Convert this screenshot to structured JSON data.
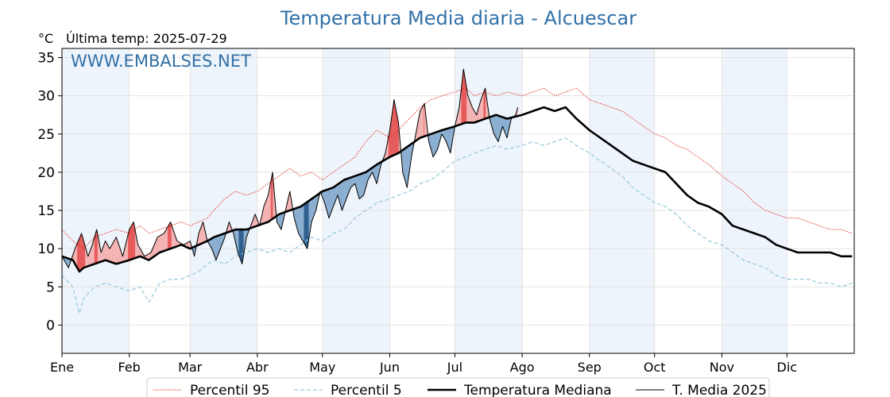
{
  "chart_data": {
    "type": "line",
    "title": "Temperatura Media diaria - Alcuescar",
    "unit_label": "°C",
    "last_temp_label": "Última temp: 2025-07-29",
    "watermark": "WWW.EMBALSES.NET",
    "ylim": [
      -3.7,
      36.2
    ],
    "y_ticks": [
      0,
      5,
      10,
      15,
      20,
      25,
      30,
      35
    ],
    "xlim_day": [
      0,
      365
    ],
    "months": [
      "Ene",
      "Feb",
      "Mar",
      "Abr",
      "May",
      "Jun",
      "Jul",
      "Ago",
      "Sep",
      "Oct",
      "Nov",
      "Dic"
    ],
    "month_start_day": [
      0,
      31,
      59,
      90,
      120,
      151,
      181,
      212,
      243,
      273,
      304,
      334
    ],
    "grid": true,
    "legend_position": "bottom-center",
    "colors": {
      "p95": "#e0241b",
      "p5": "#9ccbdc",
      "median": "#000000",
      "t2025": "#000000",
      "above_fill": "#f4b4b4",
      "above_fill_strong": "#e65a5a",
      "below_fill": "#8aaed0",
      "below_fill_strong": "#2f5f8f",
      "band_shade": "#eef4fb",
      "title": "#3070a8"
    },
    "series": [
      {
        "name": "Percentil 95",
        "style": "dotted-thin-red",
        "x": [
          0,
          5,
          10,
          15,
          20,
          25,
          31,
          36,
          40,
          45,
          50,
          55,
          59,
          63,
          67,
          70,
          75,
          80,
          85,
          90,
          95,
          100,
          105,
          110,
          115,
          120,
          125,
          130,
          135,
          140,
          145,
          151,
          155,
          160,
          165,
          170,
          175,
          181,
          186,
          190,
          195,
          200,
          205,
          212,
          217,
          222,
          227,
          232,
          237,
          243,
          248,
          253,
          258,
          263,
          268,
          273,
          278,
          283,
          288,
          293,
          298,
          304,
          309,
          314,
          319,
          324,
          329,
          334,
          339,
          344,
          349,
          354,
          359,
          364
        ],
        "values": [
          12.5,
          11.0,
          10.0,
          11.5,
          12.0,
          12.5,
          12.0,
          13.0,
          12.0,
          12.5,
          13.0,
          13.5,
          13.0,
          13.5,
          14.0,
          15.0,
          16.5,
          17.5,
          17.0,
          17.5,
          18.5,
          19.5,
          20.5,
          19.5,
          20.0,
          19.0,
          20.0,
          21.0,
          22.0,
          24.0,
          25.5,
          24.5,
          25.5,
          27.0,
          28.5,
          29.5,
          30.0,
          30.5,
          31.0,
          30.0,
          30.5,
          30.0,
          30.5,
          30.0,
          30.5,
          31.0,
          30.0,
          30.5,
          31.0,
          29.5,
          29.0,
          28.5,
          28.0,
          27.0,
          26.0,
          25.0,
          24.5,
          23.5,
          23.0,
          22.0,
          21.0,
          19.5,
          18.5,
          17.5,
          16.0,
          15.0,
          14.5,
          14.0,
          14.0,
          13.5,
          13.0,
          12.5,
          12.5,
          12.0
        ]
      },
      {
        "name": "Percentil 5",
        "style": "dashed-lightblue",
        "x": [
          0,
          5,
          8,
          10,
          15,
          20,
          25,
          31,
          36,
          40,
          45,
          50,
          55,
          59,
          63,
          67,
          70,
          75,
          80,
          85,
          90,
          95,
          100,
          105,
          110,
          115,
          120,
          125,
          130,
          135,
          140,
          145,
          151,
          155,
          160,
          165,
          170,
          175,
          181,
          186,
          190,
          195,
          200,
          205,
          212,
          217,
          222,
          227,
          232,
          237,
          243,
          248,
          253,
          258,
          263,
          268,
          273,
          278,
          283,
          288,
          293,
          298,
          304,
          309,
          314,
          319,
          324,
          329,
          334,
          339,
          344,
          349,
          354,
          359,
          364
        ],
        "values": [
          6.5,
          5.0,
          1.5,
          3.5,
          5.0,
          5.5,
          5.0,
          4.5,
          5.0,
          3.0,
          5.5,
          6.0,
          6.0,
          6.5,
          7.0,
          8.0,
          8.5,
          8.0,
          9.0,
          9.5,
          10.0,
          9.5,
          10.0,
          9.5,
          10.5,
          11.5,
          11.0,
          12.0,
          12.5,
          14.0,
          15.0,
          16.0,
          16.5,
          17.0,
          17.5,
          18.5,
          19.0,
          20.0,
          21.5,
          22.0,
          22.5,
          23.0,
          23.5,
          23.0,
          23.5,
          24.0,
          23.5,
          24.0,
          24.5,
          23.5,
          22.5,
          21.5,
          20.5,
          19.5,
          18.0,
          17.0,
          16.0,
          15.5,
          14.5,
          13.0,
          12.0,
          11.0,
          10.5,
          9.5,
          8.5,
          8.0,
          7.5,
          6.5,
          6.0,
          6.0,
          6.0,
          5.5,
          5.5,
          5.0,
          5.5
        ]
      },
      {
        "name": "Temperatura Mediana",
        "style": "thick-black",
        "x": [
          0,
          5,
          8,
          10,
          15,
          20,
          25,
          31,
          36,
          40,
          45,
          50,
          55,
          59,
          63,
          67,
          70,
          75,
          80,
          85,
          90,
          95,
          100,
          105,
          110,
          115,
          120,
          125,
          130,
          135,
          140,
          145,
          151,
          155,
          160,
          165,
          170,
          175,
          181,
          186,
          190,
          195,
          200,
          205,
          212,
          217,
          222,
          227,
          232,
          237,
          243,
          248,
          253,
          258,
          263,
          268,
          273,
          278,
          283,
          288,
          293,
          298,
          304,
          309,
          314,
          319,
          324,
          329,
          334,
          339,
          344,
          349,
          354,
          359,
          364
        ],
        "values": [
          9.0,
          8.5,
          7.0,
          7.5,
          8.0,
          8.5,
          8.0,
          8.5,
          9.0,
          8.5,
          9.5,
          10.0,
          10.5,
          10.0,
          10.5,
          11.0,
          11.5,
          12.0,
          12.5,
          12.5,
          13.0,
          13.5,
          14.5,
          15.0,
          15.5,
          16.5,
          17.5,
          18.0,
          19.0,
          19.5,
          20.0,
          21.0,
          22.0,
          22.5,
          23.5,
          24.5,
          25.0,
          25.5,
          26.0,
          26.5,
          26.5,
          27.0,
          27.5,
          27.0,
          27.5,
          28.0,
          28.5,
          28.0,
          28.5,
          27.0,
          25.5,
          24.5,
          23.5,
          22.5,
          21.5,
          21.0,
          20.5,
          20.0,
          18.5,
          17.0,
          16.0,
          15.5,
          14.5,
          13.0,
          12.5,
          12.0,
          11.5,
          10.5,
          10.0,
          9.5,
          9.5,
          9.5,
          9.5,
          9.0,
          9.0
        ]
      },
      {
        "name": "T. Media 2025",
        "style": "thin-black",
        "x": [
          0,
          3,
          6,
          9,
          12,
          14,
          16,
          18,
          20,
          22,
          25,
          28,
          31,
          33,
          35,
          38,
          41,
          44,
          47,
          50,
          53,
          56,
          59,
          61,
          63,
          65,
          67,
          69,
          71,
          73,
          75,
          77,
          79,
          81,
          83,
          85,
          87,
          89,
          91,
          93,
          95,
          97,
          99,
          101,
          103,
          105,
          107,
          109,
          111,
          113,
          115,
          117,
          119,
          121,
          123,
          125,
          127,
          129,
          131,
          133,
          135,
          137,
          139,
          141,
          143,
          145,
          147,
          149,
          151,
          153,
          155,
          157,
          159,
          161,
          163,
          165,
          167,
          169,
          171,
          173,
          175,
          177,
          179,
          181,
          183,
          185,
          187,
          189,
          191,
          193,
          195,
          197,
          199,
          201,
          203,
          205,
          207,
          209,
          210
        ],
        "values": [
          9.0,
          7.5,
          10.0,
          12.0,
          9.0,
          10.5,
          12.5,
          9.5,
          11.0,
          10.0,
          11.5,
          9.0,
          12.5,
          13.5,
          10.5,
          9.0,
          9.5,
          11.5,
          12.0,
          13.5,
          11.0,
          10.5,
          11.0,
          9.0,
          12.0,
          13.5,
          11.0,
          10.0,
          8.5,
          10.0,
          11.5,
          13.5,
          12.0,
          9.5,
          8.0,
          11.5,
          13.0,
          14.5,
          13.0,
          15.5,
          17.0,
          20.0,
          13.5,
          12.5,
          15.0,
          17.5,
          14.0,
          12.0,
          11.0,
          10.0,
          13.5,
          15.0,
          17.5,
          16.0,
          14.0,
          15.5,
          17.0,
          15.0,
          16.5,
          18.0,
          18.5,
          16.5,
          17.0,
          19.0,
          20.0,
          18.5,
          21.0,
          22.5,
          25.5,
          29.5,
          26.5,
          20.0,
          18.0,
          22.0,
          25.0,
          28.0,
          29.0,
          24.0,
          22.0,
          23.0,
          25.0,
          24.0,
          22.5,
          26.0,
          28.5,
          33.5,
          30.0,
          28.5,
          27.5,
          29.5,
          31.0,
          27.0,
          25.0,
          24.0,
          26.0,
          24.5,
          27.0,
          27.5,
          28.5
        ]
      }
    ],
    "legend": [
      "Percentil 95",
      "Percentil 5",
      "Temperatura Mediana",
      "T. Media 2025"
    ]
  }
}
